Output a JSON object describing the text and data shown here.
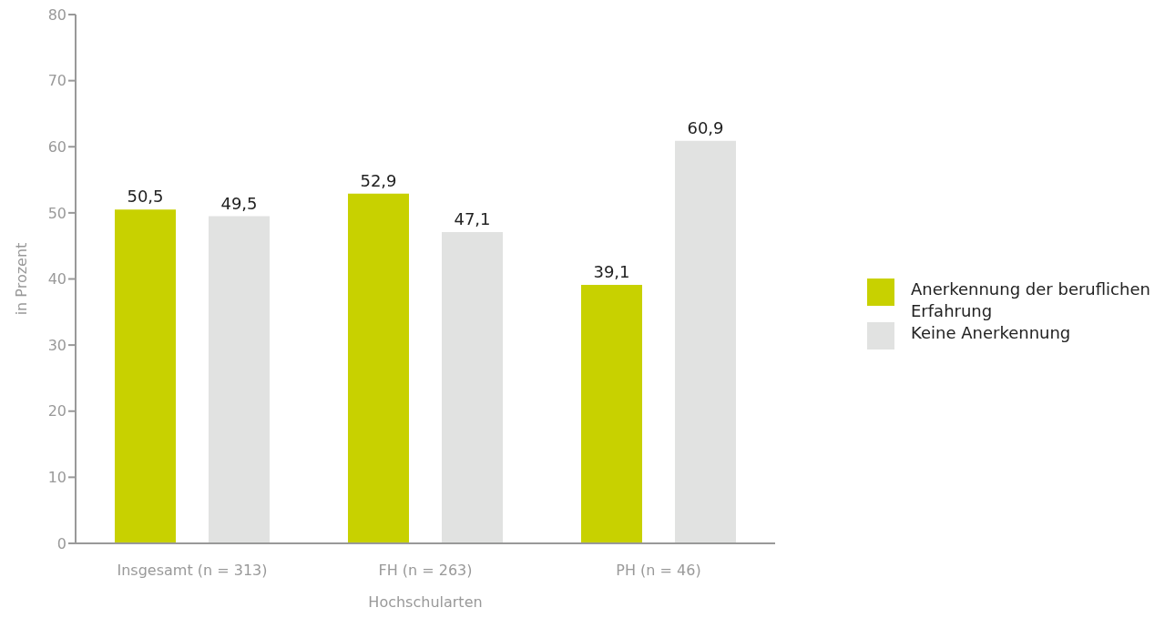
{
  "chart_data": {
    "type": "bar",
    "xlabel": "Hochschularten",
    "ylabel": "in Prozent",
    "categories": [
      "Insgesamt (n = 313)",
      "FH (n = 263)",
      "PH (n = 46)"
    ],
    "series": [
      {
        "name": "Anerkennung der beruflichen Erfahrung",
        "color": "#c8d100",
        "values": [
          50.5,
          52.9,
          39.1
        ],
        "value_labels": [
          "50,5",
          "52,9",
          "39,1"
        ]
      },
      {
        "name": "Keine Anerkennung",
        "color": "#e1e2e1",
        "values": [
          49.5,
          47.1,
          60.9
        ],
        "value_labels": [
          "49,5",
          "47,1",
          "60,9"
        ]
      }
    ],
    "ylim": [
      0,
      80
    ],
    "yticks": [
      0,
      10,
      20,
      30,
      40,
      50,
      60,
      70,
      80
    ],
    "grid": false,
    "legend": "right"
  }
}
